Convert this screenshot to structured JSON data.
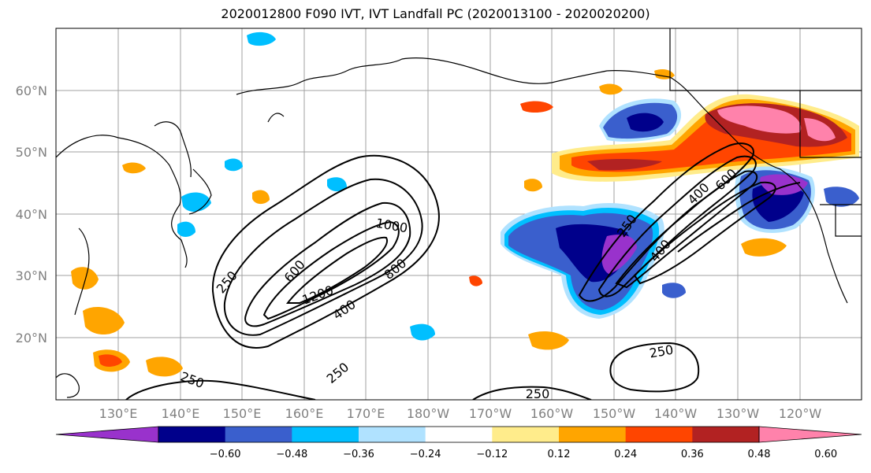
{
  "title": "2020012800 F090 IVT, IVT Landfall PC (2020013100 - 2020020200)",
  "map": {
    "lat_labels": [
      "60°N",
      "50°N",
      "40°N",
      "30°N",
      "20°N"
    ],
    "lon_labels": [
      "130°E",
      "140°E",
      "150°E",
      "160°E",
      "170°E",
      "180°W",
      "170°W",
      "160°W",
      "150°W",
      "140°W",
      "130°W",
      "120°W"
    ],
    "contour_labels": [
      "250",
      "600",
      "1200",
      "400",
      "1000",
      "800",
      "250",
      "250",
      "250",
      "250",
      "400",
      "400",
      "600",
      "250"
    ]
  },
  "colorbar": {
    "colors": [
      "#9932cc",
      "#00008b",
      "#3a5fcd",
      "#00bfff",
      "#b0e2ff",
      "#ffffff",
      "#ffec8b",
      "#ffa500",
      "#ff4500",
      "#b22222",
      "#ff82ab"
    ],
    "tick_labels": [
      "-0.60",
      "-0.48",
      "-0.36",
      "-0.24",
      "-0.12",
      "0.12",
      "0.24",
      "0.36",
      "0.48",
      "0.60"
    ]
  }
}
